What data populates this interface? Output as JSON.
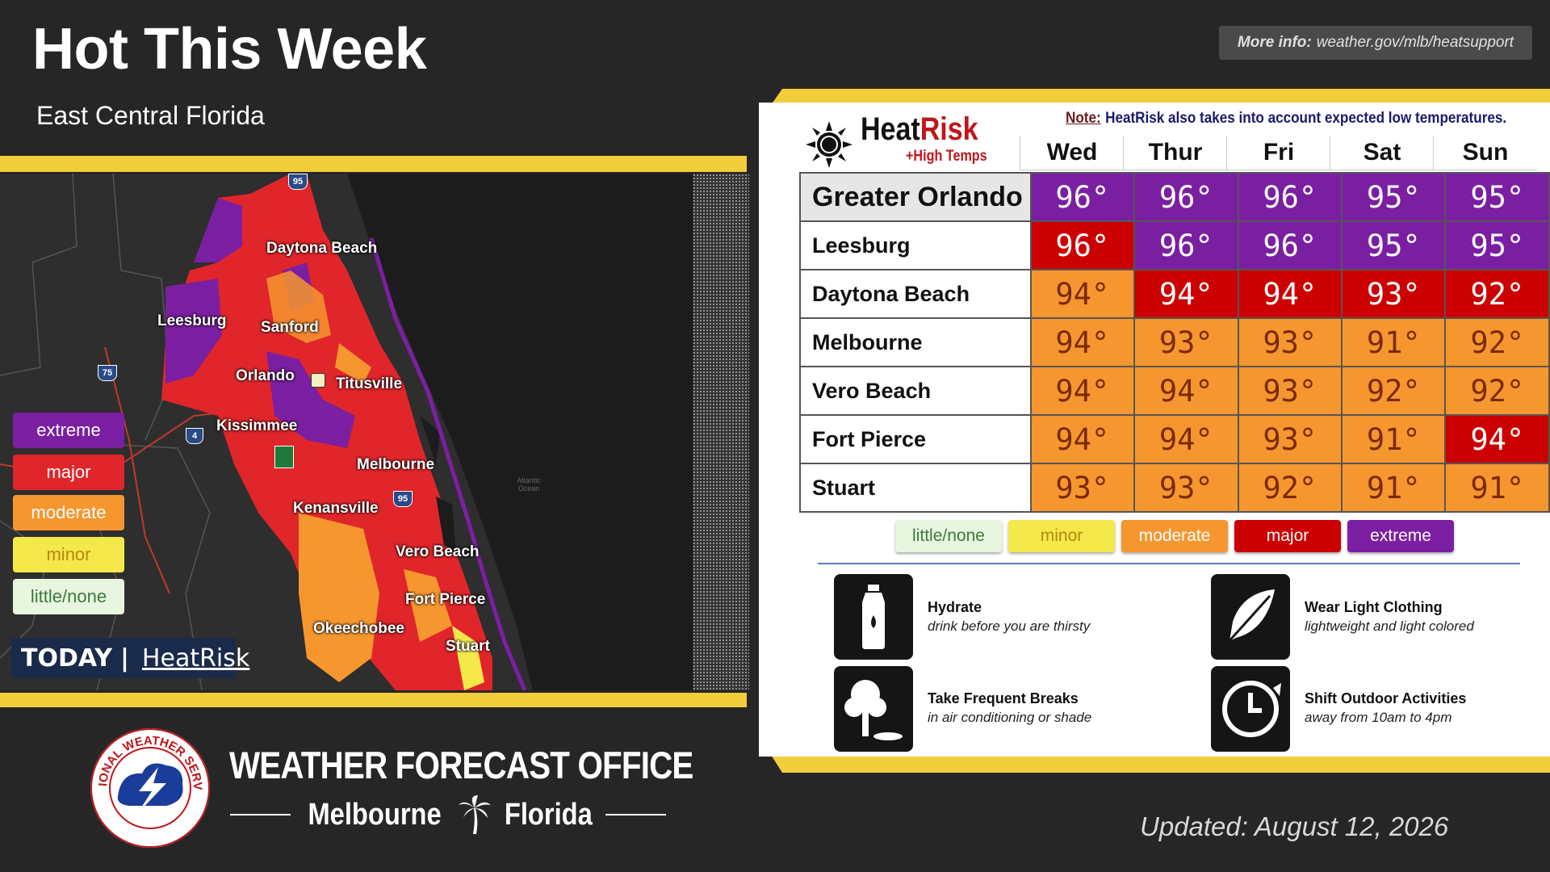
{
  "header": {
    "title": "Hot This Week",
    "subtitle": "East Central Florida",
    "more_info_label": "More info:",
    "more_info_url": "weather.gov/mlb/heatsupport"
  },
  "map": {
    "cities": [
      "Daytona Beach",
      "Leesburg",
      "Sanford",
      "Orlando",
      "Titusville",
      "Kissimmee",
      "Melbourne",
      "Kenansville",
      "Vero Beach",
      "Fort Pierce",
      "Okeechobee",
      "Stuart"
    ],
    "highway_shields": [
      "95",
      "75",
      "4",
      "95"
    ],
    "ocean_label": "Atlantic Ocean",
    "legend": [
      {
        "label": "extreme",
        "color": "#7b1fa2",
        "text": "#ffffff"
      },
      {
        "label": "major",
        "color": "#e0262a",
        "text": "#ffffff"
      },
      {
        "label": "moderate",
        "color": "#f6962f",
        "text": "#ffffff"
      },
      {
        "label": "minor",
        "color": "#f5e84a",
        "text": "#b8860b"
      },
      {
        "label": "little/none",
        "color": "#e8f6e0",
        "text": "#3a7a3a"
      }
    ],
    "today_label": "TODAY",
    "today_separator": "|",
    "today_product": "HeatRisk"
  },
  "heatrisk": {
    "logo_heat": "Heat",
    "logo_risk": "Risk",
    "logo_sub": "+High Temps",
    "note_label": "Note:",
    "note_text": "HeatRisk also takes into account expected low temperatures.",
    "days": [
      "Wed",
      "Thur",
      "Fri",
      "Sat",
      "Sun"
    ],
    "colors": {
      "extreme": "#7b1fa2",
      "major": "#cc0000",
      "moderate": "#f6962f",
      "minor": "#f5e84a",
      "little": "#e8f6e0"
    },
    "rows": [
      {
        "city": "Greater Orlando",
        "values": [
          "96°",
          "96°",
          "96°",
          "95°",
          "95°"
        ],
        "risk": [
          "extreme",
          "extreme",
          "extreme",
          "extreme",
          "extreme"
        ]
      },
      {
        "city": "Leesburg",
        "values": [
          "96°",
          "96°",
          "96°",
          "95°",
          "95°"
        ],
        "risk": [
          "major",
          "extreme",
          "extreme",
          "extreme",
          "extreme"
        ]
      },
      {
        "city": "Daytona Beach",
        "values": [
          "94°",
          "94°",
          "94°",
          "93°",
          "92°"
        ],
        "risk": [
          "moderate",
          "major",
          "major",
          "major",
          "major"
        ]
      },
      {
        "city": "Melbourne",
        "values": [
          "94°",
          "93°",
          "93°",
          "91°",
          "92°"
        ],
        "risk": [
          "moderate",
          "moderate",
          "moderate",
          "moderate",
          "moderate"
        ]
      },
      {
        "city": "Vero Beach",
        "values": [
          "94°",
          "94°",
          "93°",
          "92°",
          "92°"
        ],
        "risk": [
          "moderate",
          "moderate",
          "moderate",
          "moderate",
          "moderate"
        ]
      },
      {
        "city": "Fort Pierce",
        "values": [
          "94°",
          "94°",
          "93°",
          "91°",
          "94°"
        ],
        "risk": [
          "moderate",
          "moderate",
          "moderate",
          "moderate",
          "major"
        ]
      },
      {
        "city": "Stuart",
        "values": [
          "93°",
          "93°",
          "92°",
          "91°",
          "91°"
        ],
        "risk": [
          "moderate",
          "moderate",
          "moderate",
          "moderate",
          "moderate"
        ]
      }
    ],
    "scale": [
      {
        "label": "little/none",
        "color": "#e8f6e0",
        "text": "#3a7a3a"
      },
      {
        "label": "minor",
        "color": "#f5e84a",
        "text": "#b8860b"
      },
      {
        "label": "moderate",
        "color": "#f6962f",
        "text": "#ffffff"
      },
      {
        "label": "major",
        "color": "#cc0000",
        "text": "#ffffff"
      },
      {
        "label": "extreme",
        "color": "#7b1fa2",
        "text": "#ffffff"
      }
    ]
  },
  "tips": [
    {
      "icon": "water-bottle-icon",
      "title": "Hydrate",
      "subtitle": "drink before you are thirsty"
    },
    {
      "icon": "feather-icon",
      "title": "Wear Light Clothing",
      "subtitle": "lightweight and light colored"
    },
    {
      "icon": "tree-shade-icon",
      "title": "Take Frequent Breaks",
      "subtitle": "in air conditioning or shade"
    },
    {
      "icon": "clock-icon",
      "title": "Shift Outdoor Activities",
      "subtitle": "away from 10am to 4pm"
    }
  ],
  "footer": {
    "seal_text": "NATIONAL WEATHER SERVICE",
    "office": "WEATHER FORECAST OFFICE",
    "city": "Melbourne",
    "state": "Florida",
    "updated": "Updated: August 12, 2026"
  }
}
